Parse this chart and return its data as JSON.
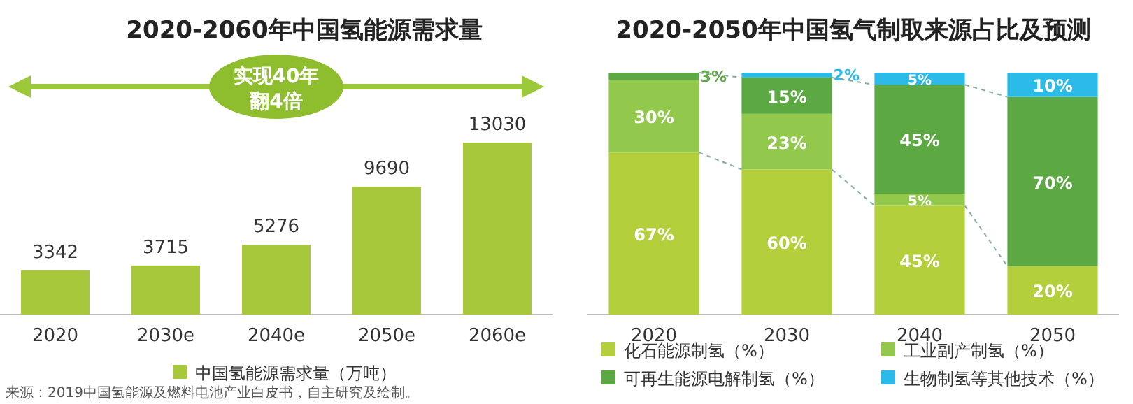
{
  "chart_data": [
    {
      "type": "bar",
      "title": "2020-2060年中国氢能源需求量",
      "categories": [
        "2020",
        "2030e",
        "2040e",
        "2050e",
        "2060e"
      ],
      "series": [
        {
          "name": "中国氢能源需求量（万吨）",
          "color": "#a8c83c",
          "values": [
            3342,
            3715,
            5276,
            9690,
            13030
          ]
        }
      ],
      "data_labels": true,
      "legend": "bottom",
      "grid": false,
      "annotations": [
        "实现40年",
        "翻4倍",
        "来源：2019中国氢能源及燃料电池产业白皮书，自主研究及绘制。"
      ]
    },
    {
      "type": "bar",
      "title": "2020-2050年中国氢气制取来源占比及预测",
      "categories": [
        "2020",
        "2030",
        "2040",
        "2050"
      ],
      "stacked": true,
      "legend": "bottom",
      "grid": false,
      "series": [
        {
          "name": "化石能源制氢（%）",
          "color": "#b3d03c",
          "values": [
            67,
            60,
            45,
            20
          ],
          "value_labels": [
            "67%",
            "60%",
            "45%",
            "20%"
          ]
        },
        {
          "name": "工业副产制氢（%）",
          "color": "#92c84c",
          "values": [
            30,
            23,
            5,
            0
          ],
          "value_labels": [
            "30%",
            "23%",
            "5%",
            null
          ]
        },
        {
          "name": "可再生能源电解制氢（%）",
          "color": "#5ca843",
          "values": [
            3,
            15,
            45,
            70
          ],
          "value_labels": [
            "3%",
            "15%",
            "45%",
            "70%"
          ]
        },
        {
          "name": "生物制氢等其他技术（%）",
          "color": "#2cbbe8",
          "values": [
            0,
            2,
            5,
            10
          ],
          "value_labels": [
            null,
            "2%",
            "5%",
            "10%"
          ]
        }
      ]
    }
  ]
}
